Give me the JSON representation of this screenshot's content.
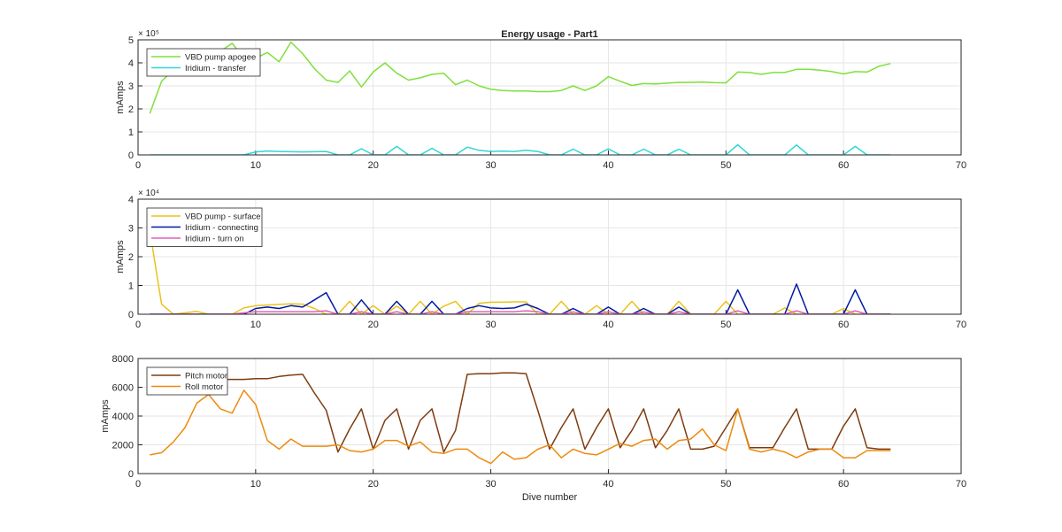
{
  "chart_data": [
    {
      "type": "line",
      "title": "Energy usage - Part1",
      "ylabel": "mAmps",
      "xlabel": "",
      "xlim": [
        0,
        70
      ],
      "ylim": [
        0,
        500000
      ],
      "xticks": [
        "0",
        "10",
        "20",
        "30",
        "40",
        "50",
        "60",
        "70"
      ],
      "yticks": [
        "0",
        "1",
        "2",
        "3",
        "4",
        "5"
      ],
      "yexponent": "× 10⁵",
      "grid": true,
      "legend_placement": "top-left",
      "series": [
        {
          "name": "VBD pump apogee",
          "color": "#7fe03c",
          "x": [
            1,
            2,
            3,
            4,
            5,
            6,
            7,
            8,
            9,
            10,
            11,
            12,
            13,
            14,
            15,
            16,
            17,
            18,
            19,
            20,
            21,
            22,
            23,
            24,
            25,
            26,
            27,
            28,
            29,
            30,
            31,
            32,
            33,
            34,
            35,
            36,
            37,
            38,
            39,
            40,
            41,
            42,
            43,
            44,
            45,
            46,
            47,
            48,
            49,
            50,
            51,
            52,
            53,
            54,
            55,
            56,
            57,
            58,
            59,
            60,
            61,
            62,
            63,
            64
          ],
          "y": [
            180000,
            320000,
            370000,
            410000,
            430000,
            455000,
            450000,
            485000,
            420000,
            420000,
            445000,
            405000,
            490000,
            440000,
            375000,
            325000,
            315000,
            365000,
            295000,
            360000,
            400000,
            355000,
            325000,
            335000,
            350000,
            355000,
            305000,
            325000,
            300000,
            285000,
            280000,
            278000,
            278000,
            275000,
            275000,
            280000,
            300000,
            280000,
            300000,
            340000,
            320000,
            302000,
            310000,
            308000,
            312000,
            315000,
            315000,
            316000,
            314000,
            313000,
            360000,
            358000,
            350000,
            358000,
            358000,
            372000,
            372000,
            368000,
            362000,
            352000,
            362000,
            360000,
            385000,
            397000
          ]
        },
        {
          "name": "Iridium - transfer",
          "color": "#2fd6d6",
          "x": [
            1,
            2,
            3,
            4,
            5,
            6,
            7,
            8,
            9,
            10,
            11,
            12,
            13,
            14,
            15,
            16,
            17,
            18,
            19,
            20,
            21,
            22,
            23,
            24,
            25,
            26,
            27,
            28,
            29,
            30,
            31,
            32,
            33,
            34,
            35,
            36,
            37,
            38,
            39,
            40,
            41,
            42,
            43,
            44,
            45,
            46,
            47,
            48,
            49,
            50,
            51,
            52,
            53,
            54,
            55,
            56,
            57,
            58,
            59,
            60,
            61,
            62,
            63,
            64
          ],
          "y": [
            0,
            0,
            0,
            0,
            0,
            0,
            0,
            0,
            0,
            13000,
            17000,
            15000,
            14000,
            13000,
            14000,
            15000,
            0,
            0,
            27000,
            0,
            0,
            37000,
            0,
            0,
            29000,
            0,
            0,
            34000,
            20000,
            15000,
            16000,
            15000,
            20000,
            15000,
            0,
            0,
            25000,
            0,
            0,
            26000,
            0,
            0,
            25000,
            0,
            0,
            25000,
            0,
            0,
            0,
            0,
            44000,
            0,
            0,
            0,
            0,
            43000,
            0,
            0,
            0,
            0,
            37000,
            0,
            0,
            0
          ]
        }
      ]
    },
    {
      "type": "line",
      "title": "",
      "ylabel": "mAmps",
      "xlabel": "",
      "xlim": [
        0,
        70
      ],
      "ylim": [
        0,
        40000
      ],
      "xticks": [
        "0",
        "10",
        "20",
        "30",
        "40",
        "50",
        "60",
        "70"
      ],
      "yticks": [
        "0",
        "1",
        "2",
        "3",
        "4"
      ],
      "yexponent": "× 10⁴",
      "grid": true,
      "legend_placement": "top-left",
      "series": [
        {
          "name": "VBD pump - surface",
          "color": "#ebc21b",
          "x": [
            1,
            2,
            3,
            4,
            5,
            6,
            7,
            8,
            9,
            10,
            11,
            12,
            13,
            14,
            15,
            16,
            17,
            18,
            19,
            20,
            21,
            22,
            23,
            24,
            25,
            26,
            27,
            28,
            29,
            30,
            31,
            32,
            33,
            34,
            35,
            36,
            37,
            38,
            39,
            40,
            41,
            42,
            43,
            44,
            45,
            46,
            47,
            48,
            49,
            50,
            51,
            52,
            53,
            54,
            55,
            56,
            57,
            58,
            59,
            60,
            61,
            62,
            63,
            64
          ],
          "y": [
            29000,
            3500,
            0,
            500,
            1000,
            0,
            0,
            0,
            2200,
            3000,
            3200,
            3400,
            3600,
            3500,
            2000,
            0,
            0,
            4500,
            0,
            3000,
            0,
            2800,
            0,
            4500,
            0,
            2800,
            4500,
            0,
            3800,
            4200,
            4200,
            4300,
            4300,
            0,
            0,
            4500,
            0,
            0,
            3000,
            0,
            0,
            4500,
            0,
            0,
            0,
            4500,
            0,
            0,
            0,
            4500,
            0,
            0,
            0,
            0,
            2200,
            0,
            0,
            0,
            0,
            2000,
            0,
            0,
            0,
            0
          ]
        },
        {
          "name": "Iridium - connecting",
          "color": "#001aa5",
          "x": [
            1,
            2,
            3,
            4,
            5,
            6,
            7,
            8,
            9,
            10,
            11,
            12,
            13,
            14,
            15,
            16,
            17,
            18,
            19,
            20,
            21,
            22,
            23,
            24,
            25,
            26,
            27,
            28,
            29,
            30,
            31,
            32,
            33,
            34,
            35,
            36,
            37,
            38,
            39,
            40,
            41,
            42,
            43,
            44,
            45,
            46,
            47,
            48,
            49,
            50,
            51,
            52,
            53,
            54,
            55,
            56,
            57,
            58,
            59,
            60,
            61,
            62,
            63,
            64
          ],
          "y": [
            0,
            0,
            0,
            0,
            0,
            0,
            0,
            0,
            0,
            2000,
            2500,
            2000,
            3000,
            2500,
            5000,
            7500,
            0,
            0,
            5000,
            0,
            0,
            4500,
            0,
            0,
            4500,
            0,
            0,
            2000,
            3000,
            2200,
            2000,
            2200,
            3500,
            2000,
            0,
            0,
            2000,
            0,
            0,
            2500,
            0,
            0,
            2000,
            0,
            0,
            2500,
            0,
            0,
            0,
            0,
            8500,
            0,
            0,
            0,
            0,
            10500,
            0,
            0,
            0,
            0,
            8500,
            0,
            0,
            0
          ]
        },
        {
          "name": "Iridium - turn on",
          "color": "#e060b8",
          "x": [
            1,
            2,
            3,
            4,
            5,
            6,
            7,
            8,
            9,
            10,
            11,
            12,
            13,
            14,
            15,
            16,
            17,
            18,
            19,
            20,
            21,
            22,
            23,
            24,
            25,
            26,
            27,
            28,
            29,
            30,
            31,
            32,
            33,
            34,
            35,
            36,
            37,
            38,
            39,
            40,
            41,
            42,
            43,
            44,
            45,
            46,
            47,
            48,
            49,
            50,
            51,
            52,
            53,
            54,
            55,
            56,
            57,
            58,
            59,
            60,
            61,
            62,
            63,
            64
          ],
          "y": [
            0,
            0,
            0,
            0,
            0,
            0,
            0,
            0,
            500,
            900,
            900,
            900,
            900,
            900,
            900,
            1200,
            0,
            0,
            900,
            0,
            0,
            900,
            0,
            0,
            900,
            0,
            0,
            900,
            900,
            900,
            900,
            900,
            1200,
            900,
            0,
            0,
            800,
            0,
            0,
            900,
            0,
            0,
            800,
            0,
            0,
            900,
            0,
            0,
            0,
            0,
            1200,
            0,
            0,
            0,
            0,
            1200,
            0,
            0,
            0,
            0,
            1200,
            0,
            0,
            0
          ]
        }
      ]
    },
    {
      "type": "line",
      "title": "",
      "ylabel": "mAmps",
      "xlabel": "Dive number",
      "xlim": [
        0,
        70
      ],
      "ylim": [
        0,
        8000
      ],
      "xticks": [
        "0",
        "10",
        "20",
        "30",
        "40",
        "50",
        "60",
        "70"
      ],
      "yticks": [
        "0",
        "2000",
        "4000",
        "6000",
        "8000"
      ],
      "yexponent": "",
      "grid": true,
      "legend_placement": "top-left",
      "series": [
        {
          "name": "Pitch motor",
          "color": "#7d3b0f",
          "x": [
            1,
            2,
            3,
            4,
            5,
            6,
            7,
            8,
            9,
            10,
            11,
            12,
            13,
            14,
            15,
            16,
            17,
            18,
            19,
            20,
            21,
            22,
            23,
            24,
            25,
            26,
            27,
            28,
            29,
            30,
            31,
            32,
            33,
            34,
            35,
            36,
            37,
            38,
            39,
            40,
            41,
            42,
            43,
            44,
            45,
            46,
            47,
            48,
            49,
            50,
            51,
            52,
            53,
            54,
            55,
            56,
            57,
            58,
            59,
            60,
            61,
            62,
            63,
            64
          ],
          "y": [
            6500,
            6500,
            6500,
            6500,
            6500,
            6500,
            6550,
            6550,
            6550,
            6600,
            6600,
            6750,
            6850,
            6900,
            5600,
            4400,
            1500,
            3100,
            4500,
            1700,
            3700,
            4500,
            1700,
            3700,
            4500,
            1500,
            3000,
            6900,
            6950,
            6950,
            7000,
            7000,
            6950,
            4400,
            1700,
            3200,
            4500,
            1700,
            3200,
            4500,
            1800,
            3000,
            4500,
            1800,
            3000,
            4500,
            1700,
            1700,
            1900,
            3200,
            4500,
            1800,
            1800,
            1800,
            3200,
            4500,
            1700,
            1700,
            1700,
            3300,
            4500,
            1800,
            1700,
            1700
          ]
        },
        {
          "name": "Roll motor",
          "color": "#ee8a0e",
          "x": [
            1,
            2,
            3,
            4,
            5,
            6,
            7,
            8,
            9,
            10,
            11,
            12,
            13,
            14,
            15,
            16,
            17,
            18,
            19,
            20,
            21,
            22,
            23,
            24,
            25,
            26,
            27,
            28,
            29,
            30,
            31,
            32,
            33,
            34,
            35,
            36,
            37,
            38,
            39,
            40,
            41,
            42,
            43,
            44,
            45,
            46,
            47,
            48,
            49,
            50,
            51,
            52,
            53,
            54,
            55,
            56,
            57,
            58,
            59,
            60,
            61,
            62,
            63,
            64
          ],
          "y": [
            1300,
            1450,
            2200,
            3200,
            4900,
            5500,
            4500,
            4200,
            5800,
            4800,
            2300,
            1700,
            2400,
            1900,
            1900,
            1900,
            2000,
            1600,
            1500,
            1700,
            2300,
            2300,
            1900,
            2200,
            1500,
            1400,
            1700,
            1700,
            1100,
            700,
            1500,
            1000,
            1100,
            1700,
            2000,
            1100,
            1700,
            1400,
            1300,
            1700,
            2100,
            1900,
            2300,
            2400,
            1700,
            2300,
            2400,
            3100,
            2000,
            1600,
            4500,
            1700,
            1500,
            1700,
            1500,
            1100,
            1500,
            1700,
            1700,
            1100,
            1100,
            1600,
            1600,
            1600
          ]
        }
      ]
    }
  ]
}
